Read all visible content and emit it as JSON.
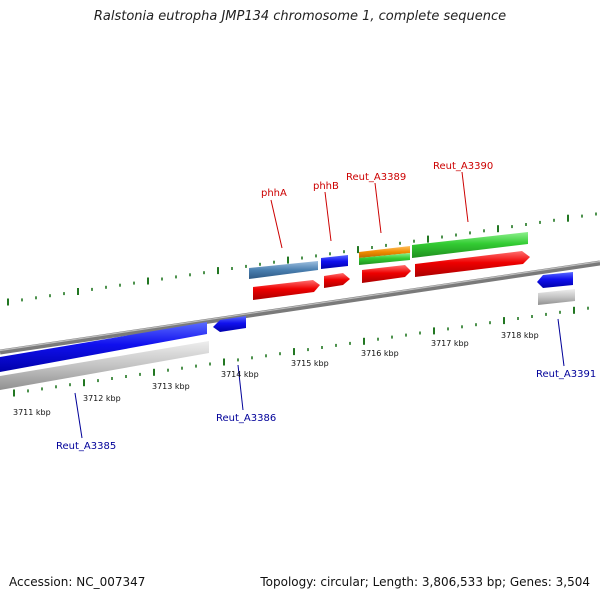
{
  "title": "Ralstonia eutropha JMP134 chromosome 1, complete sequence",
  "footer": {
    "accession": "Accession: NC_007347",
    "topology": "Topology: circular; Length: 3,806,533 bp; Genes: 3,504"
  },
  "scale": {
    "unit": "kbp",
    "tick_labels": [
      "3711 kbp",
      "3712 kbp",
      "3713 kbp",
      "3714 kbp",
      "3715 kbp",
      "3716 kbp",
      "3717 kbp",
      "3718 kbp"
    ]
  },
  "genes": [
    {
      "label": "phhA",
      "color": "#cc0000"
    },
    {
      "label": "phhB",
      "color": "#cc0000"
    },
    {
      "label": "Reut_A3389",
      "color": "#cc0000"
    },
    {
      "label": "Reut_A3390",
      "color": "#cc0000"
    },
    {
      "label": "Reut_A3385",
      "color": "#000099"
    },
    {
      "label": "Reut_A3386",
      "color": "#000099"
    },
    {
      "label": "Reut_A3391",
      "color": "#000099"
    }
  ],
  "colors": {
    "backbone": "#808080",
    "tick": "#227722",
    "minus_strand_gene": "#0000dd",
    "plus_strand_gene": "#ee0000",
    "rna_or_other": "#33cc33",
    "orange_feature": "#f08c00",
    "steelblue_feature": "#4a7fb0",
    "pseudo_grey": "#c0c0c0"
  }
}
